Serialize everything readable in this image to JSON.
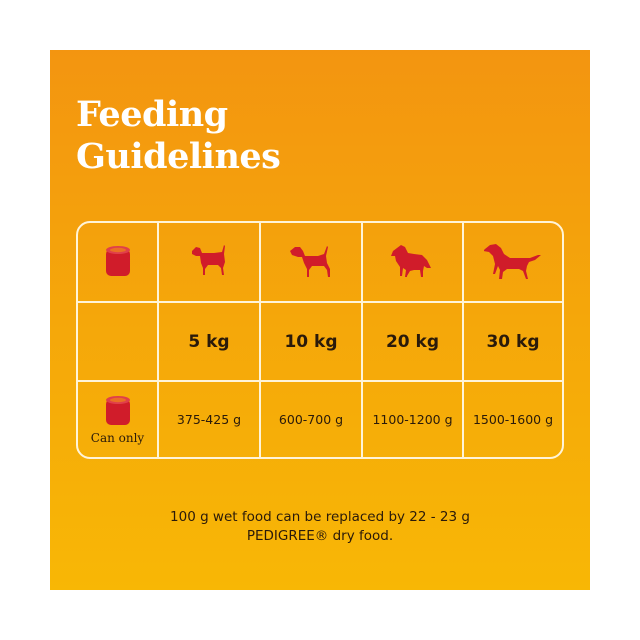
{
  "title_line1": "Feeding",
  "title_line2": "Guidelines",
  "colors": {
    "dog_red": "#d01c2a",
    "background_top": "#f39510",
    "background_bottom": "#f8b705",
    "grid_line": "#fff4d8"
  },
  "header_icons": [
    "can-icon",
    "small-dog-icon",
    "terrier-icon",
    "collie-icon",
    "setter-icon"
  ],
  "weights": [
    "5 kg",
    "10 kg",
    "20 kg",
    "30 kg"
  ],
  "can_only_label": "Can only",
  "amounts": [
    "375-425 g",
    "600-700 g",
    "1100-1200 g",
    "1500-1600 g"
  ],
  "footer_line1": "100 g wet food can be replaced by 22 - 23 g",
  "footer_line2": "PEDIGREE® dry food."
}
